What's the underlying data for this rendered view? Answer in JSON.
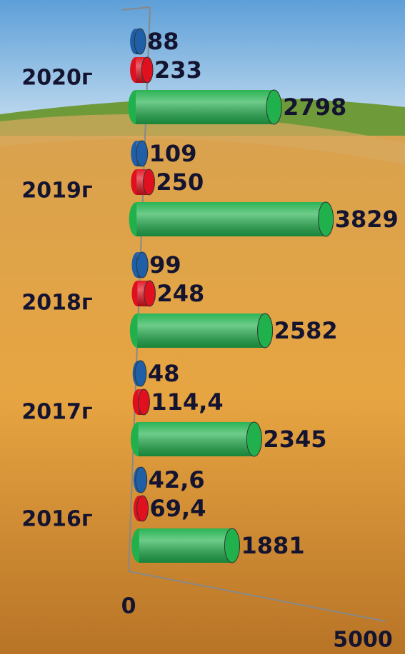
{
  "chart_data": {
    "type": "bar",
    "orientation": "horizontal",
    "categories": [
      "2020г",
      "2019г",
      "2018г",
      "2017г",
      "2016г"
    ],
    "series": [
      {
        "color": "#1f5fa8",
        "values": [
          88,
          109,
          99,
          48,
          42.6
        ],
        "value_labels": [
          "88",
          "109",
          "99",
          "48",
          "42,6"
        ]
      },
      {
        "color": "#e0101e",
        "values": [
          233,
          250,
          248,
          114.4,
          69.4
        ],
        "value_labels": [
          "233",
          "250",
          "248",
          "114,4",
          "69,4"
        ]
      },
      {
        "color": "#20b04c",
        "values": [
          2798,
          3829,
          2582,
          2345,
          1881
        ],
        "value_labels": [
          "2798",
          "3829",
          "2582",
          "2345",
          "1881"
        ]
      }
    ],
    "xlim": [
      0,
      5000
    ],
    "xticks": [
      0,
      5000
    ]
  }
}
